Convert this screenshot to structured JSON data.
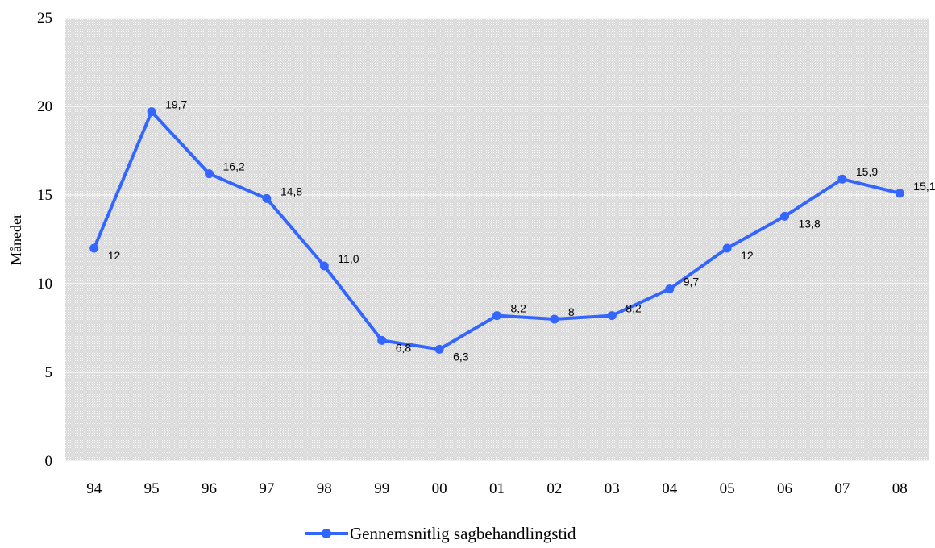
{
  "chart_data": {
    "type": "line",
    "title": "",
    "xlabel": "",
    "ylabel": "Måneder",
    "categories": [
      "94",
      "95",
      "96",
      "97",
      "98",
      "99",
      "00",
      "01",
      "02",
      "03",
      "04",
      "05",
      "06",
      "07",
      "08"
    ],
    "y_ticks": [
      "0",
      "5",
      "10",
      "15",
      "20",
      "25"
    ],
    "ylim": [
      0,
      25
    ],
    "grid": "horizontal",
    "background": "dotted-grey",
    "legend": "bottom-center",
    "series": [
      {
        "name": "Gennemsnitlig sagbehandlingstid",
        "color": "#3366ff",
        "values": [
          12,
          19.7,
          16.2,
          14.8,
          11.0,
          6.8,
          6.3,
          8.2,
          8,
          8.2,
          9.7,
          12,
          13.8,
          15.9,
          15.1
        ],
        "labels": [
          "12",
          "19,7",
          "16,2",
          "14,8",
          "11,0",
          "6,8",
          "6,3",
          "8,2",
          "8",
          "8,2",
          "9,7",
          "12",
          "13,8",
          "15,9",
          "15,1"
        ]
      }
    ]
  }
}
